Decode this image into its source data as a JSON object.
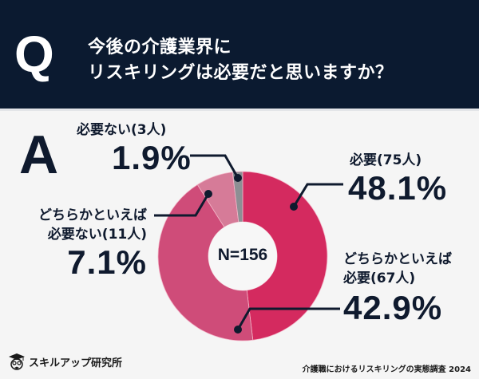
{
  "header": {
    "q_letter": "Q",
    "question_line1": "今後の介護業界に",
    "question_line2": "リスキリングは必要だと思いますか？"
  },
  "answer_letter": "A",
  "colors": {
    "header_bg": "#0b1a30",
    "text_dark": "#0f1a2e",
    "necessary": "#d42a5f",
    "somewhat_necessary": "#cf4c79",
    "somewhat_unnecessary": "#d67b98",
    "unnecessary": "#8d8f94"
  },
  "chart_data": {
    "type": "pie",
    "variant": "donut",
    "title": "今後の介護業界にリスキリングは必要だと思いますか？",
    "center_label": "N=156",
    "total": 156,
    "start": "top",
    "direction": "clockwise",
    "slices": [
      {
        "key": "necessary",
        "label": "必要",
        "label_line1": "",
        "label_line2": "必要(75人)",
        "count": 75,
        "count_label": "(75人)",
        "percent": 48.1,
        "percent_label": "48.1%",
        "color": "#d42a5f"
      },
      {
        "key": "somewhat_necessary",
        "label": "どちらかといえば必要",
        "label_line1": "どちらかといえば",
        "label_line2": "必要(67人)",
        "count": 67,
        "count_label": "(67人)",
        "percent": 42.9,
        "percent_label": "42.9%",
        "color": "#cf4c79"
      },
      {
        "key": "somewhat_unnecessary",
        "label": "どちらかといえば必要ない",
        "label_line1": "どちらかといえば",
        "label_line2": "必要ない(11人)",
        "count": 11,
        "count_label": "(11人)",
        "percent": 7.1,
        "percent_label": "7.1%",
        "color": "#d67b98"
      },
      {
        "key": "unnecessary",
        "label": "必要ない",
        "label_line1": "",
        "label_line2": "必要ない(3人)",
        "count": 3,
        "count_label": "(3人)",
        "percent": 1.9,
        "percent_label": "1.9%",
        "color": "#8d8f94"
      }
    ]
  },
  "footer": {
    "logo_text": "スキルアップ研究所",
    "source": "介護職におけるリスキリングの実態調査 2024"
  }
}
